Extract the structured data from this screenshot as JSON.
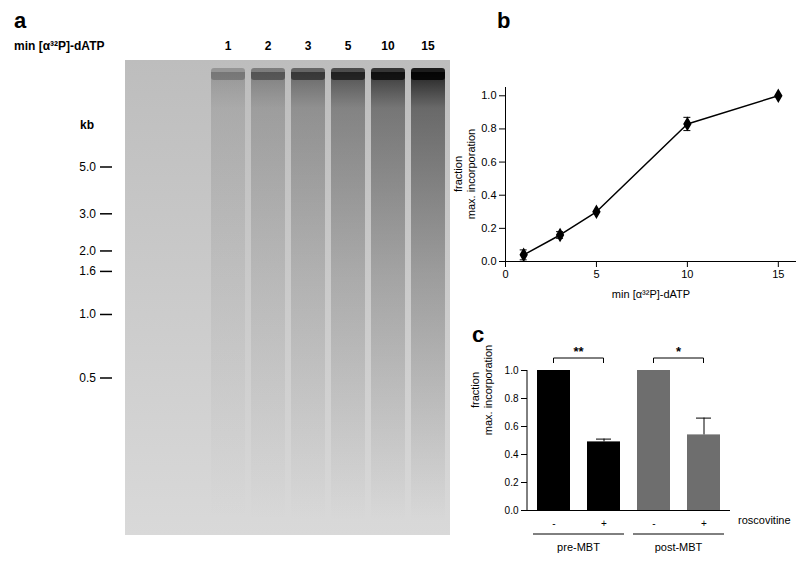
{
  "gel": {
    "label": "a",
    "lane_title": "min [α³²P]-dATP",
    "lanes": [
      "1",
      "2",
      "3",
      "5",
      "10",
      "15"
    ],
    "size_unit": "kb",
    "markers": [
      {
        "value": 5.0,
        "label": "5.0"
      },
      {
        "value": 3.0,
        "label": "3.0"
      },
      {
        "value": 2.0,
        "label": "2.0"
      },
      {
        "value": 1.6,
        "label": "1.6"
      },
      {
        "value": 1.0,
        "label": "1.0"
      },
      {
        "value": 0.5,
        "label": "0.5"
      }
    ]
  },
  "chart_data": [
    {
      "type": "line",
      "title": "b",
      "x_label": "min [α³²P]-dATP",
      "y_label": "fraction\nmax. incorporation",
      "x": [
        1,
        3,
        5,
        10,
        15
      ],
      "values": [
        0.04,
        0.16,
        0.3,
        0.83,
        1.0
      ],
      "errors": [
        0.03,
        0.02,
        0,
        0.04,
        0
      ],
      "color": "#000000",
      "marker": "diamond",
      "xlim": [
        0,
        16
      ],
      "ylim": [
        0,
        1.05
      ],
      "xticks": [
        0,
        5,
        10,
        15
      ],
      "yticks": [
        {
          "value": 0,
          "label": "0.0"
        },
        {
          "value": 0.2,
          "label": "0.2"
        },
        {
          "value": 0.4,
          "label": "0.4"
        },
        {
          "value": 0.6,
          "label": "0.6"
        },
        {
          "value": 0.8,
          "label": "0.8"
        },
        {
          "value": 1.0,
          "label": "1.0"
        }
      ]
    },
    {
      "type": "bar",
      "title": "c",
      "x_label": "roscovitine",
      "y_label": "fraction\nmax. incorporation",
      "categories": [
        "-",
        "+",
        "-",
        "+"
      ],
      "group_labels": [
        "pre-MBT",
        "pre-MBT",
        "post-MBT",
        "post-MBT"
      ],
      "values": [
        1.0,
        0.49,
        1.0,
        0.54
      ],
      "errors": [
        0,
        0.02,
        0,
        0.12
      ],
      "colors": [
        "#000000",
        "#000000",
        "#6e6e6e",
        "#6e6e6e"
      ],
      "annotations": [
        {
          "text": "**",
          "from": 0,
          "to": 1
        },
        {
          "text": "*",
          "from": 2,
          "to": 3
        }
      ],
      "ylim": [
        0,
        1.0
      ],
      "yticks": [
        {
          "value": 0,
          "label": "0.0"
        },
        {
          "value": 0.2,
          "label": "0.2"
        },
        {
          "value": 0.4,
          "label": "0.4"
        },
        {
          "value": 0.6,
          "label": "0.6"
        },
        {
          "value": 0.8,
          "label": "0.8"
        },
        {
          "value": 1.0,
          "label": "1.0"
        }
      ]
    }
  ]
}
